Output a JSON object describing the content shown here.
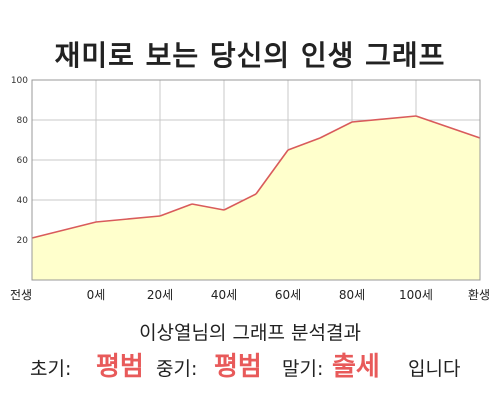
{
  "chart_data": {
    "type": "area",
    "title": "재미로 보는 당신의 인생 그래프",
    "categories": [
      "전생",
      "0세",
      "20세",
      "40세",
      "60세",
      "80세",
      "100세",
      "환생"
    ],
    "x": [
      -2,
      0,
      2,
      4,
      6,
      8,
      10,
      12
    ],
    "yticks": [
      "100",
      "80",
      "60",
      "40",
      "20"
    ],
    "ylim": [
      0,
      100
    ],
    "series": [
      {
        "x": [
          -2,
          0,
          2,
          3,
          4,
          5,
          6,
          7,
          8,
          10,
          12
        ],
        "values": [
          21,
          29,
          32,
          38,
          35,
          43,
          65,
          71,
          79,
          82,
          71
        ]
      }
    ],
    "colors": {
      "fill": "#ffffcc",
      "line": "#d95b5b",
      "grid": "#c8c8c8"
    }
  },
  "result": {
    "subtitle": "이상열님의 그래프 분석결과",
    "early_label": "초기:",
    "early_value": "평범",
    "mid_label": "중기:",
    "mid_value": "평범",
    "late_label": "말기:",
    "late_value": "출세",
    "ending": "입니다"
  }
}
